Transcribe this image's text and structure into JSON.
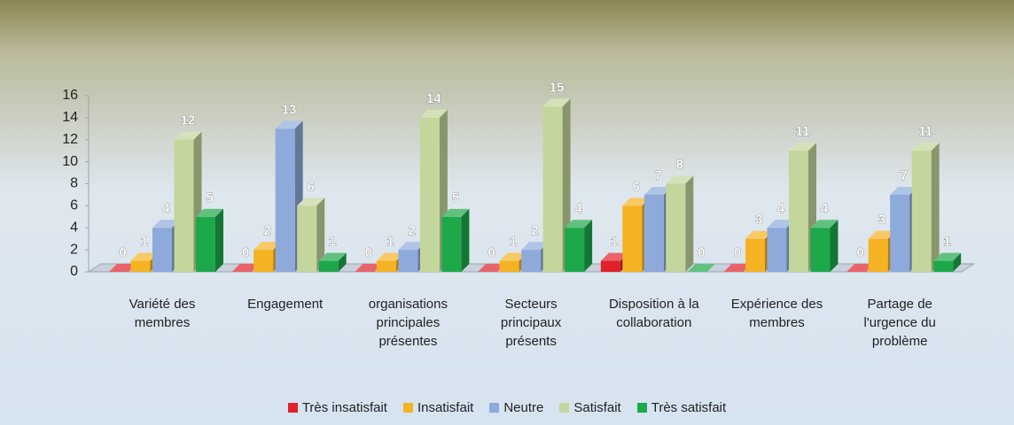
{
  "chart_data": {
    "type": "bar3d",
    "categories": [
      "Variété des membres",
      "Engagement",
      "organisations principales présentes",
      "Secteurs principaux présents",
      "Disposition à la collaboration",
      "Expérience des membres",
      "Partage de l'urgence du problème"
    ],
    "series": [
      {
        "name": "Très insatisfait",
        "color": "#e0202a",
        "values": [
          0,
          0,
          0,
          0,
          1,
          0,
          0
        ]
      },
      {
        "name": "Insatisfait",
        "color": "#f5b222",
        "values": [
          1,
          2,
          1,
          1,
          6,
          3,
          3
        ]
      },
      {
        "name": "Neutre",
        "color": "#8eaadb",
        "values": [
          4,
          13,
          2,
          2,
          7,
          4,
          7
        ]
      },
      {
        "name": "Satisfait",
        "color": "#c3d69b",
        "values": [
          12,
          6,
          14,
          15,
          8,
          11,
          11
        ]
      },
      {
        "name": "Très satisfait",
        "color": "#1da84a",
        "values": [
          5,
          1,
          5,
          4,
          0,
          4,
          1
        ]
      }
    ],
    "ylim": [
      0,
      16
    ],
    "yticks": [
      0,
      2,
      4,
      6,
      8,
      10,
      12,
      14,
      16
    ],
    "legend": "bottom"
  }
}
